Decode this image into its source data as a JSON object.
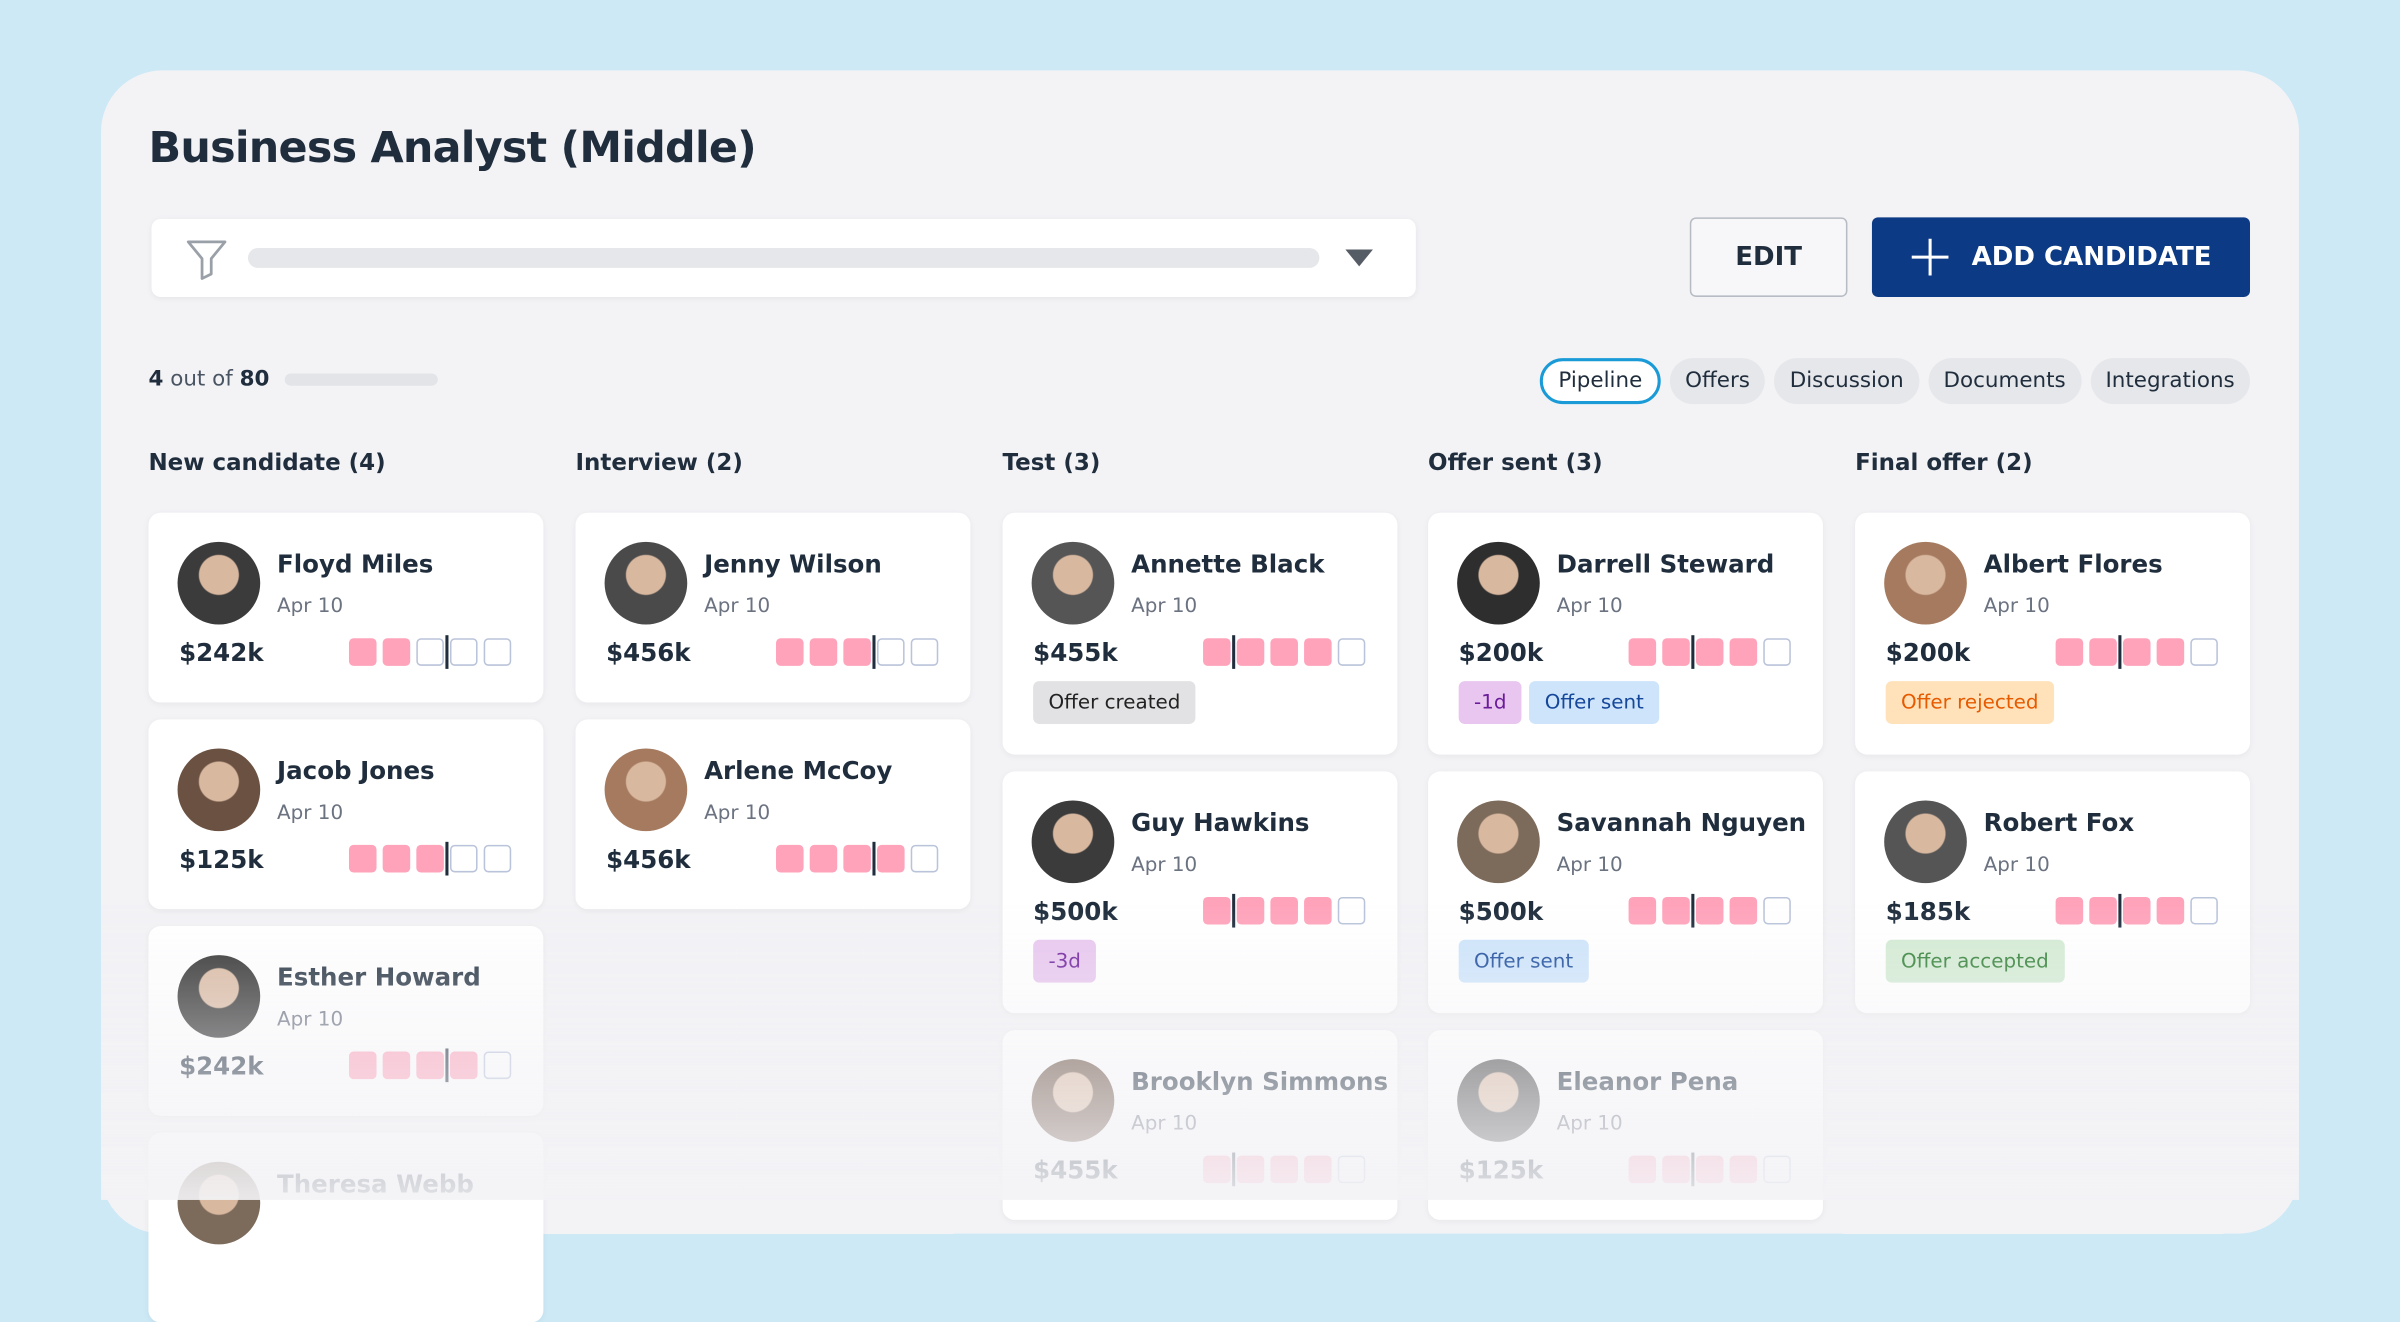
{
  "header": {
    "title": "Business Analyst (Middle)"
  },
  "toolbar": {
    "edit": "EDIT",
    "add": "ADD CANDIDATE"
  },
  "count": {
    "shown": "4",
    "text": "out of",
    "total": "80"
  },
  "tabs": [
    "Pipeline",
    "Offers",
    "Discussion",
    "Documents",
    "Integrations"
  ],
  "active_tab": 0,
  "columns": [
    {
      "title": "New candidate (4)",
      "cards": [
        {
          "name": "Floyd Miles",
          "date": "Apr 10",
          "salary": "$242k",
          "progress": 2,
          "tags": []
        },
        {
          "name": "Jacob Jones",
          "date": "Apr 10",
          "salary": "$125k",
          "progress": 3,
          "tags": []
        },
        {
          "name": "Esther Howard",
          "date": "Apr 10",
          "salary": "$242k",
          "progress": 4,
          "tags": []
        },
        {
          "name": "Theresa Webb"
        }
      ]
    },
    {
      "title": "Interview (2)",
      "cards": [
        {
          "name": "Jenny Wilson",
          "date": "Apr 10",
          "salary": "$456k",
          "progress": 3,
          "tags": []
        },
        {
          "name": "Arlene McCoy",
          "date": "Apr 10",
          "salary": "$456k",
          "progress": 4,
          "tags": []
        }
      ]
    },
    {
      "title": "Test (3)",
      "cards": [
        {
          "name": "Annette Black",
          "date": "Apr 10",
          "salary": "$455k",
          "progress": 4,
          "tags": [
            {
              "label": "Offer created",
              "style": "gray"
            }
          ]
        },
        {
          "name": "Guy Hawkins",
          "date": "Apr 10",
          "salary": "$500k",
          "progress": 4,
          "tags": [
            {
              "label": "-3d",
              "style": "purple"
            }
          ]
        },
        {
          "name": "Brooklyn Simmons",
          "date": "Apr 10",
          "salary": "$455k",
          "progress": 4,
          "tags": []
        }
      ]
    },
    {
      "title": "Offer sent (3)",
      "cards": [
        {
          "name": "Darrell Steward",
          "date": "Apr 10",
          "salary": "$200k",
          "progress": 4,
          "tags": [
            {
              "label": "-1d",
              "style": "purple"
            },
            {
              "label": "Offer sent",
              "style": "blue"
            }
          ]
        },
        {
          "name": "Savannah Nguyen",
          "date": "Apr 10",
          "salary": "$500k",
          "progress": 4,
          "tags": [
            {
              "label": "Offer sent",
              "style": "blue"
            }
          ]
        },
        {
          "name": "Eleanor Pena",
          "date": "Apr 10",
          "salary": "$125k",
          "progress": 4,
          "tags": []
        }
      ]
    },
    {
      "title": "Final offer (2)",
      "cards": [
        {
          "name": "Albert Flores",
          "date": "Apr 10",
          "salary": "$200k",
          "progress": 4,
          "tags": [
            {
              "label": "Offer rejected",
              "style": "orange"
            }
          ]
        },
        {
          "name": "Robert Fox",
          "date": "Apr 10",
          "salary": "$185k",
          "progress": 4,
          "tags": [
            {
              "label": "Offer accepted",
              "style": "green"
            }
          ]
        }
      ]
    }
  ]
}
